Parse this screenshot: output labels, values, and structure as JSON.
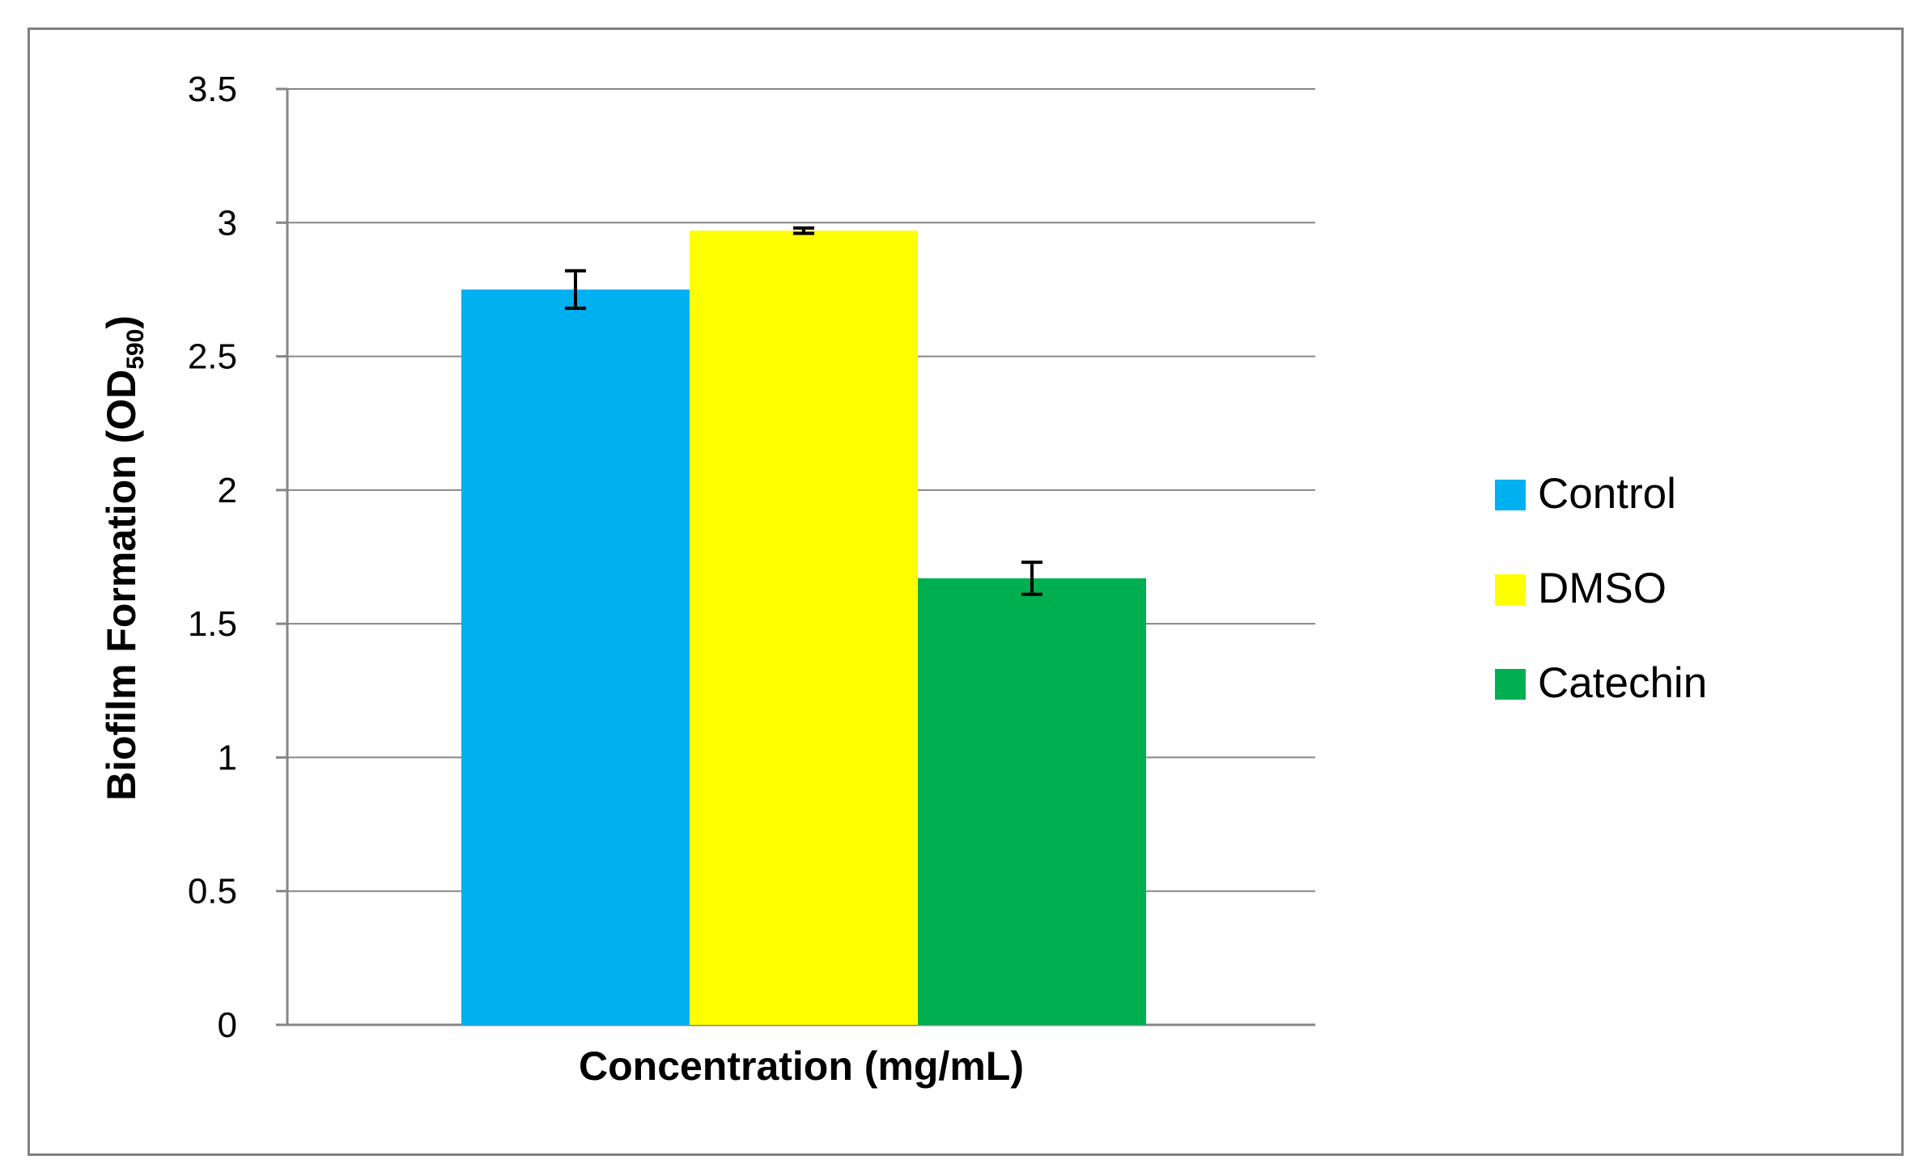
{
  "chart_data": {
    "type": "bar",
    "title": "",
    "xlabel": "Concentration (mg/mL)",
    "ylabel_main": "Biofilm Formation (OD",
    "ylabel_sub": "590",
    "ylabel_end": ")",
    "ylim": [
      0,
      3.5
    ],
    "yticks": [
      "0",
      "0.5",
      "1",
      "1.5",
      "2",
      "2.5",
      "3",
      "3.5"
    ],
    "grid": true,
    "legend_position": "right",
    "categories": [
      ""
    ],
    "series": [
      {
        "name": "Control",
        "values": [
          2.75
        ],
        "error": [
          0.07
        ],
        "color": "#00B0F0"
      },
      {
        "name": "DMSO",
        "values": [
          2.97
        ],
        "error": [
          0.01
        ],
        "color": "#FFFF00"
      },
      {
        "name": "Catechin",
        "values": [
          1.67
        ],
        "error": [
          0.06
        ],
        "color": "#00B050"
      }
    ]
  }
}
